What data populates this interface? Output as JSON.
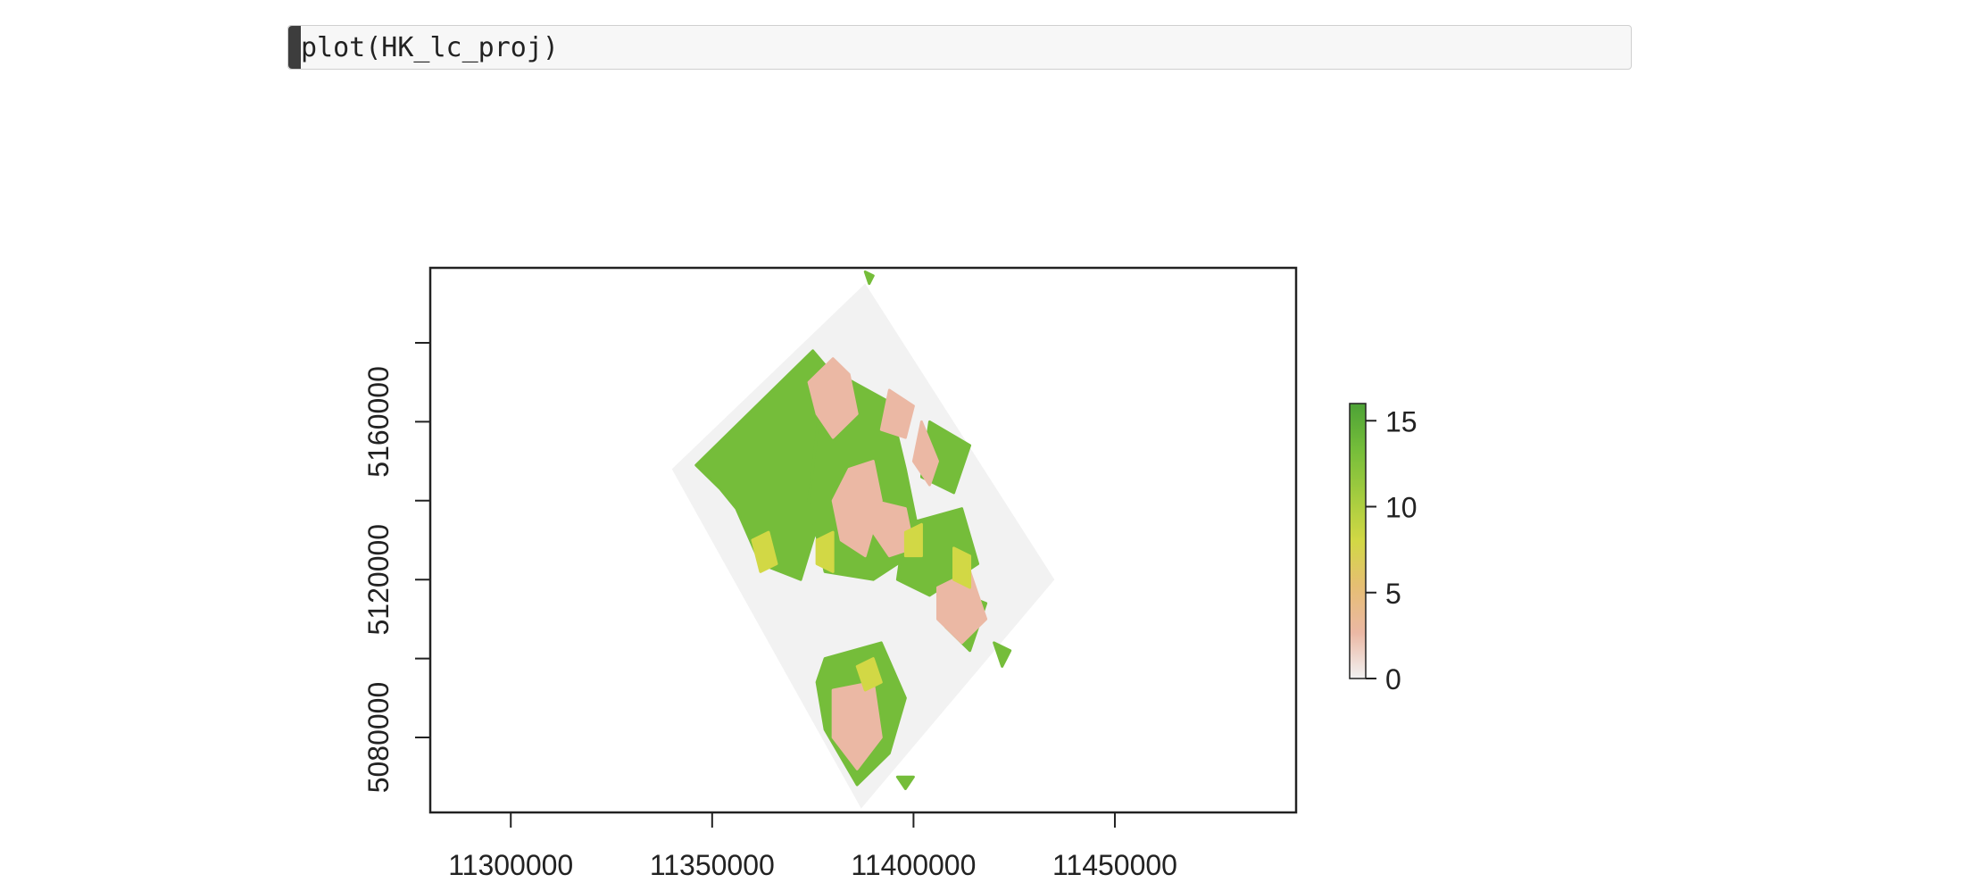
{
  "code_cell": {
    "source": "plot(HK_lc_proj)"
  },
  "chart_data": {
    "type": "heatmap",
    "title": "",
    "xlabel": "",
    "ylabel": "",
    "xlim": [
      11280000,
      11495000
    ],
    "ylim": [
      5061000,
      5199000
    ],
    "x_ticks": [
      11300000,
      11350000,
      11400000,
      11450000
    ],
    "x_tick_labels": [
      "11300000",
      "11350000",
      "11400000",
      "11450000"
    ],
    "y_ticks": [
      5080000,
      5100000,
      5120000,
      5140000,
      5160000,
      5180000
    ],
    "y_tick_labels": [
      "5080000",
      "",
      "5120000",
      "",
      "5160000",
      ""
    ],
    "raster_extent_corners": [
      [
        11388000,
        5195000
      ],
      [
        11435000,
        5120000
      ],
      [
        11387000,
        5062000
      ],
      [
        11340000,
        5148000
      ]
    ],
    "value_range": [
      0,
      16
    ],
    "colorbar": {
      "ticks": [
        0,
        5,
        10,
        15
      ],
      "tick_labels": [
        "0",
        "5",
        "10",
        "15"
      ],
      "colors": [
        "#f2f2f2",
        "#ebb8a4",
        "#e6be74",
        "#d2d845",
        "#a3cc3f",
        "#75bd3a",
        "#4da236"
      ]
    },
    "background_class_color": "#f2f2f2",
    "regions": [
      {
        "value": 14,
        "polygon": [
          [
            11346000,
            5149000
          ],
          [
            11375000,
            5178000
          ],
          [
            11380000,
            5172000
          ],
          [
            11384000,
            5154000
          ],
          [
            11378000,
            5140000
          ],
          [
            11372000,
            5120000
          ],
          [
            11362000,
            5124000
          ],
          [
            11356000,
            5138000
          ],
          [
            11352000,
            5143000
          ]
        ]
      },
      {
        "value": 12,
        "polygon": [
          [
            11378000,
            5174000
          ],
          [
            11394000,
            5165000
          ],
          [
            11398000,
            5148000
          ],
          [
            11402000,
            5128000
          ],
          [
            11390000,
            5120000
          ],
          [
            11378000,
            5122000
          ],
          [
            11374000,
            5140000
          ]
        ]
      },
      {
        "value": 14,
        "polygon": [
          [
            11398000,
            5134000
          ],
          [
            11412000,
            5138000
          ],
          [
            11416000,
            5124000
          ],
          [
            11404000,
            5116000
          ],
          [
            11396000,
            5120000
          ]
        ]
      },
      {
        "value": 12,
        "polygon": [
          [
            11404000,
            5160000
          ],
          [
            11414000,
            5154000
          ],
          [
            11410000,
            5142000
          ],
          [
            11402000,
            5146000
          ]
        ]
      },
      {
        "value": 12,
        "polygon": [
          [
            11378000,
            5100000
          ],
          [
            11392000,
            5104000
          ],
          [
            11398000,
            5090000
          ],
          [
            11394000,
            5076000
          ],
          [
            11386000,
            5068000
          ],
          [
            11378000,
            5082000
          ],
          [
            11376000,
            5094000
          ]
        ]
      },
      {
        "value": 12,
        "polygon": [
          [
            11408000,
            5118000
          ],
          [
            11418000,
            5114000
          ],
          [
            11414000,
            5102000
          ],
          [
            11408000,
            5108000
          ]
        ]
      },
      {
        "value": 2,
        "polygon": [
          [
            11374000,
            5170000
          ],
          [
            11380000,
            5176000
          ],
          [
            11384000,
            5172000
          ],
          [
            11386000,
            5162000
          ],
          [
            11380000,
            5156000
          ],
          [
            11376000,
            5162000
          ]
        ]
      },
      {
        "value": 2,
        "polygon": [
          [
            11384000,
            5148000
          ],
          [
            11390000,
            5150000
          ],
          [
            11392000,
            5140000
          ],
          [
            11388000,
            5126000
          ],
          [
            11382000,
            5130000
          ],
          [
            11380000,
            5140000
          ]
        ]
      },
      {
        "value": 2,
        "polygon": [
          [
            11394000,
            5168000
          ],
          [
            11400000,
            5164000
          ],
          [
            11398000,
            5156000
          ],
          [
            11392000,
            5158000
          ]
        ]
      },
      {
        "value": 2,
        "polygon": [
          [
            11390000,
            5140000
          ],
          [
            11398000,
            5138000
          ],
          [
            11400000,
            5128000
          ],
          [
            11394000,
            5126000
          ],
          [
            11390000,
            5132000
          ]
        ]
      },
      {
        "value": 2,
        "polygon": [
          [
            11402000,
            5160000
          ],
          [
            11406000,
            5150000
          ],
          [
            11404000,
            5144000
          ],
          [
            11400000,
            5150000
          ]
        ]
      },
      {
        "value": 2,
        "polygon": [
          [
            11406000,
            5118000
          ],
          [
            11414000,
            5122000
          ],
          [
            11418000,
            5110000
          ],
          [
            11412000,
            5104000
          ],
          [
            11406000,
            5110000
          ]
        ]
      },
      {
        "value": 2,
        "polygon": [
          [
            11380000,
            5092000
          ],
          [
            11390000,
            5094000
          ],
          [
            11392000,
            5080000
          ],
          [
            11386000,
            5072000
          ],
          [
            11380000,
            5080000
          ]
        ]
      },
      {
        "value": 8,
        "polygon": [
          [
            11360000,
            5130000
          ],
          [
            11364000,
            5132000
          ],
          [
            11366000,
            5124000
          ],
          [
            11362000,
            5122000
          ]
        ]
      },
      {
        "value": 8,
        "polygon": [
          [
            11376000,
            5130000
          ],
          [
            11380000,
            5132000
          ],
          [
            11380000,
            5122000
          ],
          [
            11376000,
            5124000
          ]
        ]
      },
      {
        "value": 8,
        "polygon": [
          [
            11386000,
            5098000
          ],
          [
            11390000,
            5100000
          ],
          [
            11392000,
            5094000
          ],
          [
            11388000,
            5092000
          ]
        ]
      },
      {
        "value": 8,
        "polygon": [
          [
            11398000,
            5132000
          ],
          [
            11402000,
            5134000
          ],
          [
            11402000,
            5126000
          ],
          [
            11398000,
            5126000
          ]
        ]
      },
      {
        "value": 8,
        "polygon": [
          [
            11410000,
            5128000
          ],
          [
            11414000,
            5126000
          ],
          [
            11414000,
            5118000
          ],
          [
            11410000,
            5120000
          ]
        ]
      },
      {
        "value": 14,
        "polygon": [
          [
            11420000,
            5104000
          ],
          [
            11424000,
            5102000
          ],
          [
            11422000,
            5098000
          ]
        ]
      },
      {
        "value": 14,
        "polygon": [
          [
            11388000,
            5198000
          ],
          [
            11390000,
            5197000
          ],
          [
            11389000,
            5195000
          ]
        ]
      },
      {
        "value": 14,
        "polygon": [
          [
            11396000,
            5070000
          ],
          [
            11400000,
            5070000
          ],
          [
            11398000,
            5067000
          ]
        ]
      }
    ]
  }
}
